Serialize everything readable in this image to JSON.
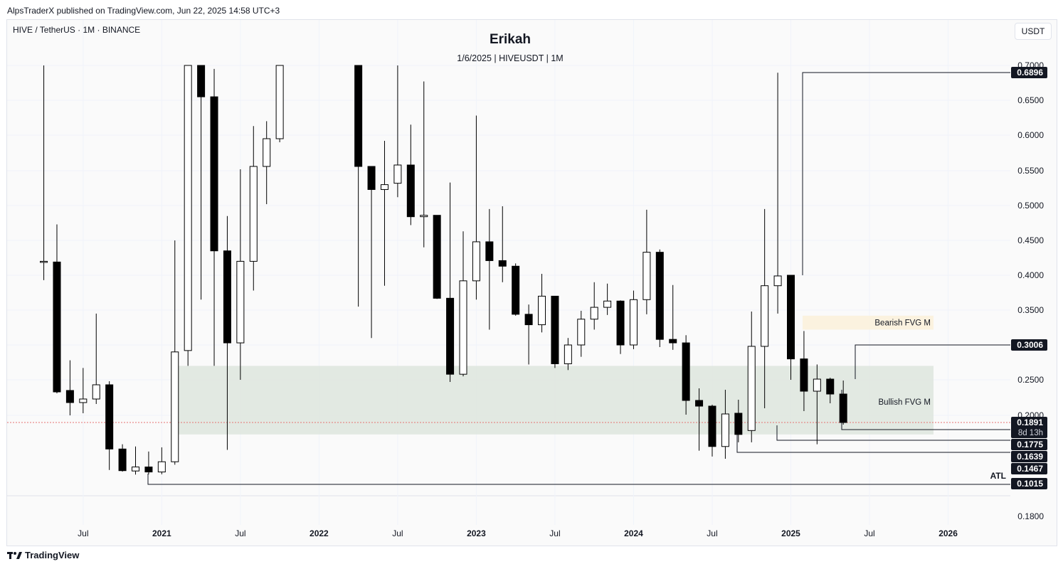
{
  "header": {
    "published": "AlpsTraderX published on TradingView.com, Jun 22, 2025 14:58 UTC+3"
  },
  "symbol": {
    "label": "HIVE / TetherUS · 1M · BINANCE"
  },
  "watermark": {
    "title": "Erikah",
    "subtitle": "1/6/2025 | HIVEUSDT | 1M"
  },
  "currency": "USDT",
  "footer": {
    "brand": "TradingView"
  },
  "colors": {
    "up_candle": "#ffffff",
    "down_candle": "#000000",
    "bullish_fvg": "#dfe7df",
    "bearish_fvg": "#fbf1dc",
    "price_line": "#e57373"
  },
  "chart_data": {
    "type": "candlestick",
    "title": "Erikah",
    "timeframe": "1M",
    "x_tick_labels": [
      "Jul",
      "2021",
      "Jul",
      "2022",
      "Jul",
      "2023",
      "Jul",
      "2024",
      "Jul",
      "2025",
      "Jul",
      "2026"
    ],
    "y_tick_labels": [
      "0.7000",
      "0.6500",
      "0.6000",
      "0.5500",
      "0.5000",
      "0.4500",
      "0.4000",
      "0.3500",
      "0.3000",
      "0.2500",
      "0.2000",
      "0.1800"
    ],
    "candles": [
      {
        "date": "2020-04",
        "open": 0.42,
        "high": 0.7,
        "low": 0.393,
        "close": 0.42
      },
      {
        "date": "2020-05",
        "open": 0.419,
        "high": 0.473,
        "low": 0.231,
        "close": 0.233
      },
      {
        "date": "2020-06",
        "open": 0.235,
        "high": 0.278,
        "low": 0.2,
        "close": 0.218
      },
      {
        "date": "2020-07",
        "open": 0.218,
        "high": 0.267,
        "low": 0.203,
        "close": 0.223
      },
      {
        "date": "2020-08",
        "open": 0.223,
        "high": 0.345,
        "low": 0.216,
        "close": 0.243
      },
      {
        "date": "2020-09",
        "open": 0.243,
        "high": 0.248,
        "low": 0.145,
        "close": 0.173
      },
      {
        "date": "2020-10",
        "open": 0.173,
        "high": 0.178,
        "low": 0.14,
        "close": 0.143
      },
      {
        "date": "2020-11",
        "open": 0.142,
        "high": 0.176,
        "low": 0.131,
        "close": 0.15
      },
      {
        "date": "2020-12",
        "open": 0.15,
        "high": 0.17,
        "low": 0.132,
        "close": 0.139
      },
      {
        "date": "2021-01",
        "open": 0.139,
        "high": 0.175,
        "low": 0.132,
        "close": 0.157
      },
      {
        "date": "2021-02",
        "open": 0.157,
        "high": 0.45,
        "low": 0.153,
        "close": 0.29
      },
      {
        "date": "2021-03",
        "open": 0.292,
        "high": 0.7,
        "low": 0.27,
        "close": 0.7
      },
      {
        "date": "2021-04",
        "open": 0.7,
        "high": 0.7,
        "low": 0.365,
        "close": 0.655
      },
      {
        "date": "2021-05",
        "open": 0.655,
        "high": 0.695,
        "low": 0.27,
        "close": 0.435
      },
      {
        "date": "2021-06",
        "open": 0.435,
        "high": 0.485,
        "low": 0.172,
        "close": 0.303
      },
      {
        "date": "2021-07",
        "open": 0.303,
        "high": 0.552,
        "low": 0.25,
        "close": 0.42
      },
      {
        "date": "2021-08",
        "open": 0.42,
        "high": 0.613,
        "low": 0.378,
        "close": 0.556
      },
      {
        "date": "2021-09",
        "open": 0.556,
        "high": 0.62,
        "low": 0.502,
        "close": 0.595
      },
      {
        "date": "2021-10",
        "open": 0.595,
        "high": 0.7,
        "low": 0.59,
        "close": 0.7
      },
      {
        "date": "2022-04",
        "open": 0.7,
        "high": 0.7,
        "low": 0.355,
        "close": 0.556
      },
      {
        "date": "2022-05",
        "open": 0.556,
        "high": 0.556,
        "low": 0.31,
        "close": 0.523
      },
      {
        "date": "2022-06",
        "open": 0.523,
        "high": 0.592,
        "low": 0.385,
        "close": 0.53
      },
      {
        "date": "2022-07",
        "open": 0.532,
        "high": 0.7,
        "low": 0.512,
        "close": 0.558
      },
      {
        "date": "2022-08",
        "open": 0.558,
        "high": 0.615,
        "low": 0.472,
        "close": 0.484
      },
      {
        "date": "2022-09",
        "open": 0.484,
        "high": 0.677,
        "low": 0.44,
        "close": 0.486
      },
      {
        "date": "2022-10",
        "open": 0.486,
        "high": 0.486,
        "low": 0.366,
        "close": 0.367
      },
      {
        "date": "2022-11",
        "open": 0.367,
        "high": 0.533,
        "low": 0.247,
        "close": 0.258
      },
      {
        "date": "2022-12",
        "open": 0.258,
        "high": 0.463,
        "low": 0.255,
        "close": 0.392
      },
      {
        "date": "2023-01",
        "open": 0.392,
        "high": 0.628,
        "low": 0.365,
        "close": 0.448
      },
      {
        "date": "2023-02",
        "open": 0.448,
        "high": 0.495,
        "low": 0.322,
        "close": 0.421
      },
      {
        "date": "2023-03",
        "open": 0.421,
        "high": 0.499,
        "low": 0.39,
        "close": 0.413
      },
      {
        "date": "2023-04",
        "open": 0.413,
        "high": 0.417,
        "low": 0.342,
        "close": 0.344
      },
      {
        "date": "2023-05",
        "open": 0.344,
        "high": 0.358,
        "low": 0.272,
        "close": 0.329
      },
      {
        "date": "2023-06",
        "open": 0.329,
        "high": 0.402,
        "low": 0.318,
        "close": 0.37
      },
      {
        "date": "2023-07",
        "open": 0.37,
        "high": 0.37,
        "low": 0.267,
        "close": 0.273
      },
      {
        "date": "2023-08",
        "open": 0.273,
        "high": 0.31,
        "low": 0.264,
        "close": 0.3
      },
      {
        "date": "2023-09",
        "open": 0.3,
        "high": 0.349,
        "low": 0.283,
        "close": 0.337
      },
      {
        "date": "2023-10",
        "open": 0.337,
        "high": 0.39,
        "low": 0.322,
        "close": 0.354
      },
      {
        "date": "2023-11",
        "open": 0.354,
        "high": 0.388,
        "low": 0.343,
        "close": 0.363
      },
      {
        "date": "2023-12",
        "open": 0.363,
        "high": 0.364,
        "low": 0.287,
        "close": 0.3
      },
      {
        "date": "2024-01",
        "open": 0.3,
        "high": 0.378,
        "low": 0.294,
        "close": 0.365
      },
      {
        "date": "2024-02",
        "open": 0.365,
        "high": 0.494,
        "low": 0.344,
        "close": 0.433
      },
      {
        "date": "2024-03",
        "open": 0.433,
        "high": 0.437,
        "low": 0.297,
        "close": 0.308
      },
      {
        "date": "2024-04",
        "open": 0.308,
        "high": 0.386,
        "low": 0.293,
        "close": 0.303
      },
      {
        "date": "2024-05",
        "open": 0.303,
        "high": 0.314,
        "low": 0.201,
        "close": 0.221
      },
      {
        "date": "2024-06",
        "open": 0.221,
        "high": 0.238,
        "low": 0.171,
        "close": 0.213
      },
      {
        "date": "2024-07",
        "open": 0.213,
        "high": 0.215,
        "low": 0.164,
        "close": 0.176
      },
      {
        "date": "2024-08",
        "open": 0.176,
        "high": 0.236,
        "low": 0.161,
        "close": 0.202
      },
      {
        "date": "2024-09",
        "open": 0.203,
        "high": 0.222,
        "low": 0.179,
        "close": 0.183
      },
      {
        "date": "2024-10",
        "open": 0.185,
        "high": 0.348,
        "low": 0.179,
        "close": 0.298
      },
      {
        "date": "2024-11",
        "open": 0.298,
        "high": 0.495,
        "low": 0.21,
        "close": 0.385
      },
      {
        "date": "2024-12",
        "open": 0.385,
        "high": 0.6896,
        "low": 0.345,
        "close": 0.399
      },
      {
        "date": "2025-01",
        "open": 0.4,
        "high": 0.4,
        "low": 0.25,
        "close": 0.28
      },
      {
        "date": "2025-02",
        "open": 0.28,
        "high": 0.32,
        "low": 0.206,
        "close": 0.234
      },
      {
        "date": "2025-03",
        "open": 0.234,
        "high": 0.272,
        "low": 0.178,
        "close": 0.251
      },
      {
        "date": "2025-04",
        "open": 0.251,
        "high": 0.253,
        "low": 0.217,
        "close": 0.23
      },
      {
        "date": "2025-05",
        "open": 0.23,
        "high": 0.249,
        "low": 0.188,
        "close": 0.1891
      }
    ],
    "zones": [
      {
        "label": "Bearish FVG M",
        "top": 0.342,
        "bottom": 0.322
      },
      {
        "label": "Bullish FVG M",
        "top": 0.27,
        "bottom": 0.183
      }
    ],
    "levels": [
      {
        "label": "0.6896"
      },
      {
        "label": "0.3006"
      },
      {
        "label": "0.1775"
      },
      {
        "label": "0.1639"
      },
      {
        "label": "0.1467"
      },
      {
        "label": "0.1015",
        "note": "ATL"
      }
    ],
    "current_price": {
      "value": "0.1891",
      "countdown": "8d 13h"
    },
    "grid": true
  }
}
